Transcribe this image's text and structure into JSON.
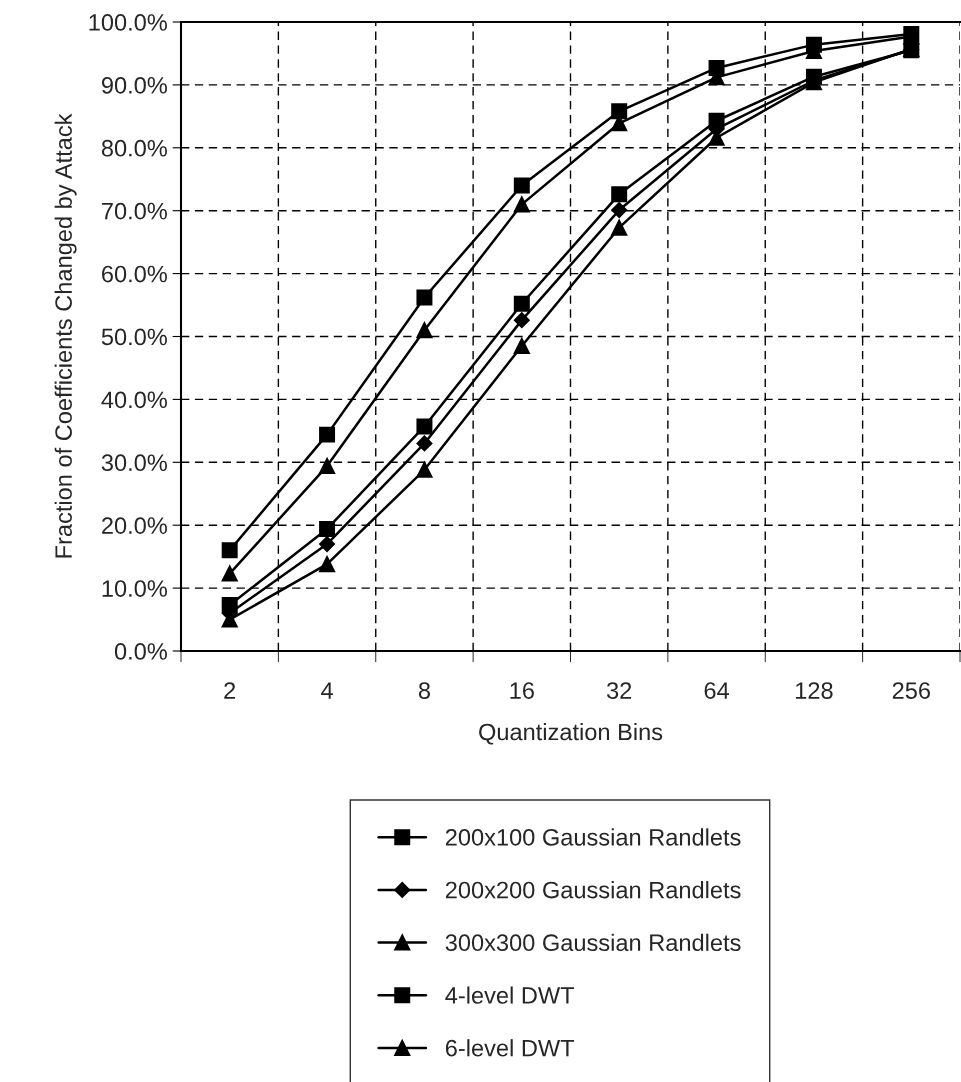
{
  "chart_data": {
    "type": "line",
    "xlabel": "Quantization Bins",
    "ylabel": "Fraction of Coefficients Changed by Attack",
    "categories": [
      "2",
      "4",
      "8",
      "16",
      "32",
      "64",
      "128",
      "256"
    ],
    "series": [
      {
        "name": "200x100 Gaussian Randlets",
        "color": "#000000",
        "marker": "square",
        "values": [
          7.3,
          19.4,
          35.7,
          55.2,
          72.6,
          84.3,
          91.3,
          95.5
        ]
      },
      {
        "name": "200x200 Gaussian Randlets",
        "color": "#000000",
        "marker": "diamond",
        "values": [
          6.0,
          17.0,
          33.0,
          52.6,
          70.1,
          83.0,
          90.7,
          95.6
        ]
      },
      {
        "name": "300x300 Gaussian Randlets",
        "color": "#000000",
        "marker": "triangle",
        "values": [
          5.0,
          13.8,
          28.8,
          48.5,
          67.3,
          81.6,
          90.4,
          95.7
        ]
      },
      {
        "name": "4-level DWT",
        "color": "#000000",
        "marker": "square",
        "values": [
          16.0,
          34.4,
          56.2,
          74.0,
          85.8,
          92.7,
          96.4,
          98.1
        ]
      },
      {
        "name": "6-level DWT",
        "color": "#000000",
        "marker": "triangle",
        "values": [
          12.3,
          29.4,
          51.0,
          71.0,
          83.9,
          91.2,
          95.4,
          97.7
        ]
      }
    ],
    "ylim": [
      0,
      100
    ],
    "yticks": [
      {
        "value": 0,
        "label": "0.0%"
      },
      {
        "value": 10,
        "label": "10.0%"
      },
      {
        "value": 20,
        "label": "20.0%"
      },
      {
        "value": 30,
        "label": "30.0%"
      },
      {
        "value": 40,
        "label": "40.0%"
      },
      {
        "value": 50,
        "label": "50.0%"
      },
      {
        "value": 60,
        "label": "60.0%"
      },
      {
        "value": 70,
        "label": "70.0%"
      },
      {
        "value": 80,
        "label": "80.0%"
      },
      {
        "value": 90,
        "label": "90.0%"
      },
      {
        "value": 100,
        "label": "100.0%"
      }
    ],
    "grid": true,
    "legend": "bottom",
    "line_style": "solid"
  }
}
